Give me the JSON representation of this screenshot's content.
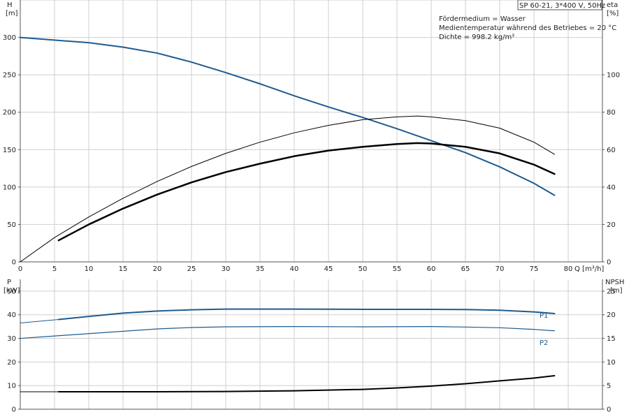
{
  "chart_data": [
    {
      "type": "line",
      "name_box": "SP 60-21, 3*400 V, 50Hz",
      "info_lines": [
        "Fördermedium = Wasser",
        "Medientemperatur während des Betriebes = 20 °C",
        "Dichte = 998.2 kg/m³"
      ],
      "xlabel": "Q [m³/h]",
      "xlim": [
        0,
        85
      ],
      "xticks": [
        0,
        5,
        10,
        15,
        20,
        25,
        30,
        35,
        40,
        45,
        50,
        55,
        60,
        65,
        70,
        75,
        80
      ],
      "y_left": {
        "label_top": "H",
        "label_unit": "[m]",
        "lim": [
          0,
          350
        ],
        "ticks": [
          0,
          50,
          100,
          150,
          200,
          250,
          300
        ]
      },
      "y_right": {
        "label_top": "eta",
        "label_unit": "[%]",
        "lim": [
          0,
          140
        ],
        "ticks": [
          0,
          20,
          40,
          60,
          80,
          100
        ]
      },
      "series": [
        {
          "axis": "left",
          "color": "#1f5b8f",
          "width": 2,
          "x": [
            0,
            5.6,
            10,
            15,
            20,
            25,
            30,
            35,
            40,
            45,
            50,
            55,
            60,
            65,
            70,
            75,
            78
          ],
          "y": [
            300,
            296,
            293,
            287,
            279,
            267,
            253,
            238,
            222,
            207,
            193,
            178,
            162,
            146,
            127,
            105,
            89
          ]
        },
        {
          "axis": "right",
          "color": "#000000",
          "width": 2.5,
          "x": [
            5.6,
            10,
            15,
            20,
            25,
            30,
            35,
            40,
            45,
            50,
            55,
            58,
            60,
            65,
            70,
            75,
            78
          ],
          "y": [
            11.5,
            20,
            28.5,
            36,
            42.5,
            48,
            52.5,
            56.5,
            59.5,
            61.5,
            63,
            63.5,
            63.3,
            61.5,
            58,
            52,
            47
          ]
        },
        {
          "axis": "right",
          "color": "#000000",
          "width": 1,
          "x": [
            0,
            5,
            10,
            15,
            20,
            25,
            30,
            35,
            40,
            45,
            50,
            55,
            58,
            60,
            65,
            70,
            75,
            78
          ],
          "y": [
            0,
            13,
            24,
            34,
            43,
            51,
            58,
            64,
            69,
            73,
            76,
            77.5,
            78,
            77.5,
            75.5,
            71.5,
            64,
            57.5
          ]
        }
      ]
    },
    {
      "type": "line",
      "xlim": [
        0,
        85
      ],
      "xticks": [
        0,
        5,
        10,
        15,
        20,
        25,
        30,
        35,
        40,
        45,
        50,
        55,
        60,
        65,
        70,
        75,
        80
      ],
      "y_left": {
        "label_top": "P",
        "label_unit": "[kW]",
        "lim": [
          0,
          55
        ],
        "ticks": [
          0,
          10,
          20,
          30,
          40,
          50
        ]
      },
      "y_right": {
        "label_top": "NPSH",
        "label_unit": "[m]",
        "lim": [
          0,
          27.5
        ],
        "ticks": [
          0,
          5,
          10,
          15,
          20,
          25
        ]
      },
      "series": [
        {
          "name": "P1",
          "axis": "left",
          "color": "#1f5b8f",
          "width": 2,
          "x": [
            5.6,
            10,
            15,
            20,
            25,
            30,
            40,
            50,
            60,
            65,
            70,
            75,
            78
          ],
          "y": [
            38,
            39.3,
            40.7,
            41.6,
            42.1,
            42.4,
            42.4,
            42.3,
            42.3,
            42.2,
            41.9,
            41.2,
            40.5
          ]
        },
        {
          "axis": "left",
          "color": "#1f5b8f",
          "width": 1,
          "x": [
            0,
            5.6
          ],
          "y": [
            36.5,
            38
          ]
        },
        {
          "name": "P2",
          "axis": "left",
          "color": "#1f5b8f",
          "width": 1.2,
          "x": [
            0,
            5,
            10,
            15,
            20,
            25,
            30,
            40,
            50,
            60,
            65,
            70,
            75,
            78
          ],
          "y": [
            30,
            31,
            32,
            33,
            34,
            34.6,
            34.9,
            35,
            34.9,
            35,
            34.8,
            34.5,
            33.8,
            33.2
          ]
        },
        {
          "axis": "right",
          "color": "#000000",
          "width": 2,
          "x": [
            5.6,
            10,
            20,
            30,
            40,
            50,
            55,
            60,
            65,
            70,
            75,
            78
          ],
          "y": [
            3.7,
            3.7,
            3.7,
            3.75,
            3.9,
            4.2,
            4.5,
            4.9,
            5.4,
            6.0,
            6.6,
            7.1
          ]
        },
        {
          "axis": "right",
          "color": "#000000",
          "width": 1,
          "x": [
            0,
            5.6
          ],
          "y": [
            3.7,
            3.7
          ]
        }
      ]
    }
  ]
}
